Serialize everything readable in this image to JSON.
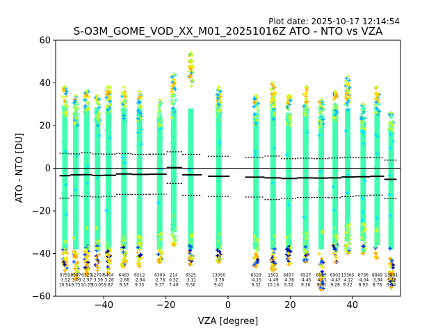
{
  "chart_data": {
    "type": "scatter",
    "plot_date": "Plot date: 2025-10-17 12:14:54",
    "title": "S-O3M_GOME_VOD_XX_M01_20251016Z ATO - NTO vs VZA",
    "xlabel": "VZA [degree]",
    "ylabel": "ATO - NTO [DU]",
    "xlim": [
      -55.5,
      55.5
    ],
    "ylim": [
      -60,
      60
    ],
    "xticks": [
      -40,
      -20,
      0,
      20,
      40
    ],
    "yticks": [
      -60,
      -40,
      -20,
      0,
      20,
      40,
      60
    ],
    "x_tick_labels": [
      "−40",
      "−20",
      "0",
      "20",
      "40"
    ],
    "y_tick_labels": [
      "−60",
      "−40",
      "−20",
      "0",
      "20",
      "40",
      "60"
    ],
    "marker_colors": [
      "#00e5ff",
      "#40ffb0",
      "#7dff7a",
      "#c8ff30",
      "#ffe000",
      "#ffb000",
      "#00b0ff",
      "#0050ff",
      "#0000a0"
    ],
    "bins": [
      {
        "vza": -52.5,
        "n": "9759",
        "median": "-3.52",
        "sd": "10.54",
        "median_val": -3.5,
        "sd_val": 10.5,
        "lo": -48,
        "hi": 38
      },
      {
        "vza": -49.0,
        "n": "8587",
        "median": "-3.09",
        "sd": "9.75",
        "median_val": -3.1,
        "sd_val": 9.8,
        "lo": -52,
        "hi": 34
      },
      {
        "vza": -45.5,
        "n": "6329",
        "median": "-2.97",
        "sd": "10.29",
        "median_val": -3.0,
        "sd_val": 10.3,
        "lo": -50,
        "hi": 36
      },
      {
        "vza": -42.0,
        "n": "12797",
        "median": "-3.39",
        "sd": "10.05",
        "median_val": -3.4,
        "sd_val": 10.1,
        "lo": -48,
        "hi": 34
      },
      {
        "vza": -38.5,
        "n": "6404",
        "median": "-3.28",
        "sd": "9.87",
        "median_val": -3.3,
        "sd_val": 9.9,
        "lo": -49,
        "hi": 38
      },
      {
        "vza": -33.5,
        "n": "6483",
        "median": "-2.68",
        "sd": "9.57",
        "median_val": -2.7,
        "sd_val": 9.6,
        "lo": -46,
        "hi": 38
      },
      {
        "vza": -28.5,
        "n": "6512",
        "median": "-2.94",
        "sd": "9.35",
        "median_val": -2.9,
        "sd_val": 9.4,
        "lo": -46,
        "hi": 36
      },
      {
        "vza": -22.0,
        "n": "6309",
        "median": "-2.76",
        "sd": "9.37",
        "median_val": -2.8,
        "sd_val": 9.4,
        "lo": -44,
        "hi": 32
      },
      {
        "vza": -17.5,
        "n": "214",
        "median": "0.32",
        "sd": "7.40",
        "median_val": 0.3,
        "sd_val": 7.4,
        "lo": -36,
        "hi": 44
      },
      {
        "vza": -12.0,
        "n": "6525",
        "median": "-3.11",
        "sd": "9.56",
        "median_val": -3.1,
        "sd_val": 9.6,
        "lo": -45,
        "hi": 54
      },
      {
        "vza": -3.0,
        "n": "13050",
        "median": "-3.78",
        "sd": "9.41",
        "median_val": -3.8,
        "sd_val": 9.4,
        "lo": -44,
        "hi": 38
      },
      {
        "vza": 9.0,
        "n": "6529",
        "median": "-4.15",
        "sd": "9.32",
        "median_val": -4.2,
        "sd_val": 9.3,
        "lo": -46,
        "hi": 34
      },
      {
        "vza": 14.5,
        "n": "1502",
        "median": "-4.49",
        "sd": "10.16",
        "median_val": -4.5,
        "sd_val": 10.2,
        "lo": -48,
        "hi": 40
      },
      {
        "vza": 19.5,
        "n": "6497",
        "median": "-4.78",
        "sd": "9.32",
        "median_val": -4.8,
        "sd_val": 9.3,
        "lo": -45,
        "hi": 34
      },
      {
        "vza": 25.0,
        "n": "6527",
        "median": "-4.45",
        "sd": "9.16",
        "median_val": -4.5,
        "sd_val": 9.2,
        "lo": -44,
        "hi": 38
      },
      {
        "vza": 30.0,
        "n": "6527",
        "median": "-4.55",
        "sd": "9.06",
        "median_val": -4.6,
        "sd_val": 9.1,
        "lo": -57,
        "hi": 32
      },
      {
        "vza": 34.5,
        "n": "6902",
        "median": "-4.47",
        "sd": "9.28",
        "median_val": -4.5,
        "sd_val": 9.3,
        "lo": -44,
        "hi": 36
      },
      {
        "vza": 38.5,
        "n": "13365",
        "median": "-4.12",
        "sd": "9.22",
        "median_val": -4.1,
        "sd_val": 9.2,
        "lo": -40,
        "hi": 43
      },
      {
        "vza": 43.5,
        "n": "6736",
        "median": "-4.04",
        "sd": "8.93",
        "median_val": -4.0,
        "sd_val": 8.9,
        "lo": -40,
        "hi": 30
      },
      {
        "vza": 48.0,
        "n": "8849",
        "median": "-3.84",
        "sd": "8.78",
        "median_val": -3.8,
        "sd_val": 8.8,
        "lo": -42,
        "hi": 38
      },
      {
        "vza": 52.5,
        "n": "13081",
        "median": "-5.18",
        "sd": "9.04",
        "median_val": -5.2,
        "sd_val": 9.0,
        "lo": -56,
        "hi": 26
      }
    ]
  }
}
